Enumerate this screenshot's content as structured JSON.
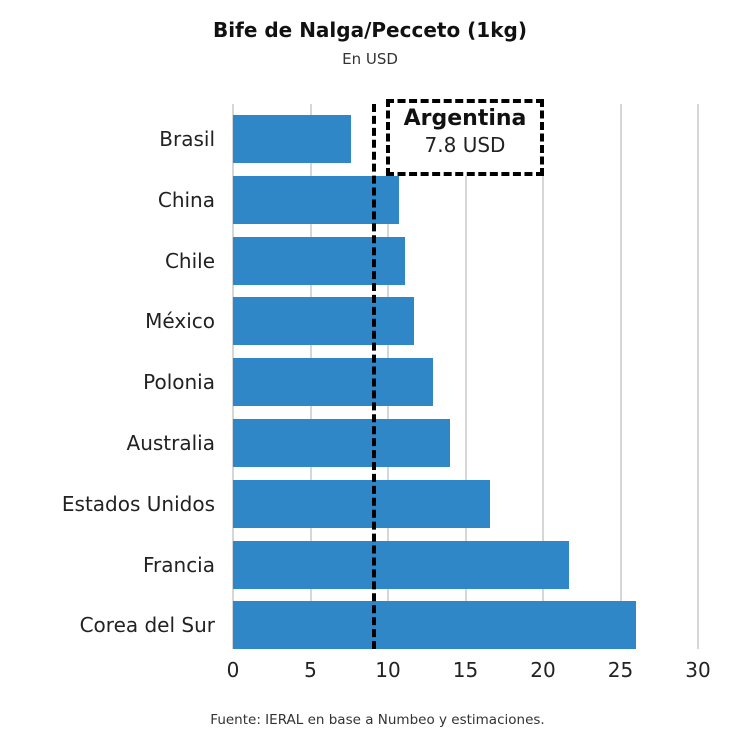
{
  "chart_data": {
    "type": "bar",
    "orientation": "horizontal",
    "title": "Bife de Nalga/Pecceto (1kg)",
    "subtitle": "En USD",
    "categories": [
      "Brasil",
      "China",
      "Chile",
      "México",
      "Polonia",
      "Australia",
      "Estados Unidos",
      "Francia",
      "Corea del Sur"
    ],
    "values": [
      7.6,
      10.7,
      11.1,
      11.7,
      12.9,
      14.0,
      16.6,
      21.7,
      26.0
    ],
    "xlabel": "",
    "ylabel": "",
    "xlim": [
      0,
      30
    ],
    "xticks": [
      "0",
      "5",
      "10",
      "15",
      "20",
      "25",
      "30"
    ],
    "grid": true,
    "bar_color": "#3087c7",
    "reference_line": {
      "label": "Argentina",
      "value_label": "7.8 USD",
      "value": 7.8,
      "style": "dashed"
    },
    "source": "Fuente: IERAL en base a Numbeo y estimaciones."
  }
}
